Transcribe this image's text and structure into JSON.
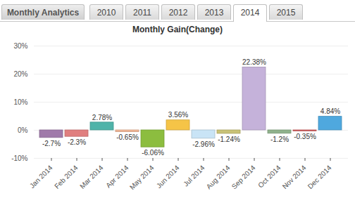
{
  "header": {
    "title": "Monthly Analytics",
    "tabs": [
      "2010",
      "2011",
      "2012",
      "2013",
      "2014",
      "2015"
    ],
    "selected_tab": "2014"
  },
  "chart_data": {
    "type": "bar",
    "title": "Monthly Gain(Change)",
    "categories": [
      "Jan 2014",
      "Feb 2014",
      "Mar 2014",
      "Apr 2014",
      "May 2014",
      "Jun 2014",
      "Jul 2014",
      "Aug 2014",
      "Sep 2014",
      "Oct 2014",
      "Nov 2014",
      "Dec 2014"
    ],
    "values": [
      -2.7,
      -2.3,
      2.78,
      -0.65,
      -6.06,
      3.56,
      -2.96,
      -1.24,
      22.38,
      -1.2,
      -0.35,
      4.84
    ],
    "value_labels": [
      "-2.7%",
      "-2.3%",
      "2.78%",
      "-0.65%",
      "-6.06%",
      "3.56%",
      "-2.96%",
      "-1.24%",
      "22.38%",
      "-1.2%",
      "-0.35%",
      "4.84%"
    ],
    "colors": [
      "#a07aaa",
      "#e07f7f",
      "#4fb3a9",
      "#f3b796",
      "#8cbd3f",
      "#f5c447",
      "#c9e4f6",
      "#c9c276",
      "#c5b2da",
      "#8fb28c",
      "#d45f5f",
      "#4fa8de"
    ],
    "ylim": [
      -10,
      30
    ],
    "yticks": [
      {
        "value": -10,
        "label": "-10%"
      },
      {
        "value": 0,
        "label": "0%"
      },
      {
        "value": 10,
        "label": "10%"
      },
      {
        "value": 20,
        "label": "20%"
      },
      {
        "value": 30,
        "label": "30%"
      }
    ],
    "grid": true,
    "data_labels": true
  }
}
